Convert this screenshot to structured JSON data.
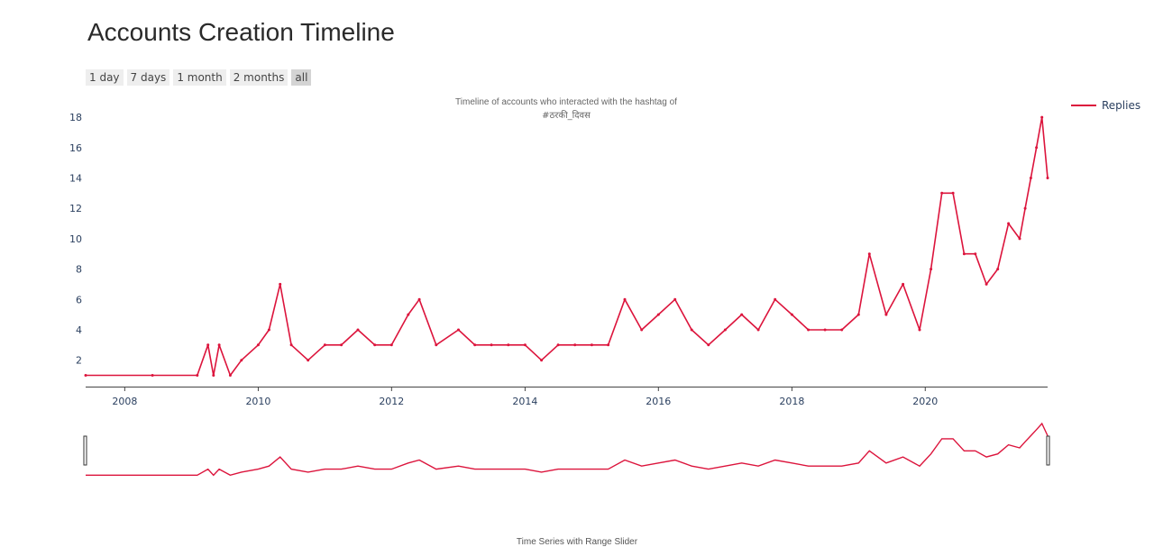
{
  "page": {
    "title": "Accounts Creation Timeline"
  },
  "range_selector": {
    "buttons": [
      {
        "label": "1 day"
      },
      {
        "label": "7 days"
      },
      {
        "label": "1 month"
      },
      {
        "label": "2 months"
      },
      {
        "label": "all"
      }
    ],
    "active_index": 4
  },
  "legend": {
    "entries": [
      {
        "name": "Replies",
        "color": "#dc143c"
      }
    ]
  },
  "footer": {
    "caption": "Time Series with Range Slider"
  },
  "chart_data": {
    "type": "line",
    "title": "Timeline of accounts who interacted with the hashtag of #ठरकी_दिवस",
    "title_lines": [
      "Timeline of accounts who interacted with the hashtag of",
      "#ठरकी_दिवस"
    ],
    "xlabel": "",
    "ylabel": "",
    "x_ticks": [
      "2008",
      "2010",
      "2012",
      "2014",
      "2016",
      "2018",
      "2020"
    ],
    "y_ticks": [
      2,
      4,
      6,
      8,
      10,
      12,
      14,
      16,
      18
    ],
    "xlim": [
      "2007-06-01",
      "2021-11-01"
    ],
    "ylim": [
      0.2,
      18.6
    ],
    "grid": false,
    "legend_position": "top-right",
    "range_slider": true,
    "series": [
      {
        "name": "Replies",
        "color": "#dc143c",
        "points": [
          [
            "2007-06",
            1
          ],
          [
            "2008-06",
            1
          ],
          [
            "2009-02",
            1
          ],
          [
            "2009-04",
            3
          ],
          [
            "2009-05",
            1
          ],
          [
            "2009-06",
            3
          ],
          [
            "2009-08",
            1
          ],
          [
            "2009-10",
            2
          ],
          [
            "2010-01",
            3
          ],
          [
            "2010-03",
            4
          ],
          [
            "2010-05",
            7
          ],
          [
            "2010-07",
            3
          ],
          [
            "2010-10",
            2
          ],
          [
            "2011-01",
            3
          ],
          [
            "2011-04",
            3
          ],
          [
            "2011-07",
            4
          ],
          [
            "2011-10",
            3
          ],
          [
            "2012-01",
            3
          ],
          [
            "2012-04",
            5
          ],
          [
            "2012-06",
            6
          ],
          [
            "2012-09",
            3
          ],
          [
            "2013-01",
            4
          ],
          [
            "2013-04",
            3
          ],
          [
            "2013-07",
            3
          ],
          [
            "2013-10",
            3
          ],
          [
            "2014-01",
            3
          ],
          [
            "2014-04",
            2
          ],
          [
            "2014-07",
            3
          ],
          [
            "2014-10",
            3
          ],
          [
            "2015-01",
            3
          ],
          [
            "2015-04",
            3
          ],
          [
            "2015-07",
            6
          ],
          [
            "2015-10",
            4
          ],
          [
            "2016-01",
            5
          ],
          [
            "2016-04",
            6
          ],
          [
            "2016-07",
            4
          ],
          [
            "2016-10",
            3
          ],
          [
            "2017-01",
            4
          ],
          [
            "2017-04",
            5
          ],
          [
            "2017-07",
            4
          ],
          [
            "2017-10",
            6
          ],
          [
            "2018-01",
            5
          ],
          [
            "2018-04",
            4
          ],
          [
            "2018-07",
            4
          ],
          [
            "2018-10",
            4
          ],
          [
            "2019-01",
            5
          ],
          [
            "2019-03",
            9
          ],
          [
            "2019-06",
            5
          ],
          [
            "2019-09",
            7
          ],
          [
            "2019-12",
            4
          ],
          [
            "2020-02",
            8
          ],
          [
            "2020-04",
            13
          ],
          [
            "2020-06",
            13
          ],
          [
            "2020-08",
            9
          ],
          [
            "2020-10",
            9
          ],
          [
            "2020-12",
            7
          ],
          [
            "2021-02",
            8
          ],
          [
            "2021-04",
            11
          ],
          [
            "2021-06",
            10
          ],
          [
            "2021-07",
            12
          ],
          [
            "2021-08",
            14
          ],
          [
            "2021-09",
            16
          ],
          [
            "2021-10",
            18
          ],
          [
            "2021-11",
            14
          ]
        ]
      }
    ]
  }
}
